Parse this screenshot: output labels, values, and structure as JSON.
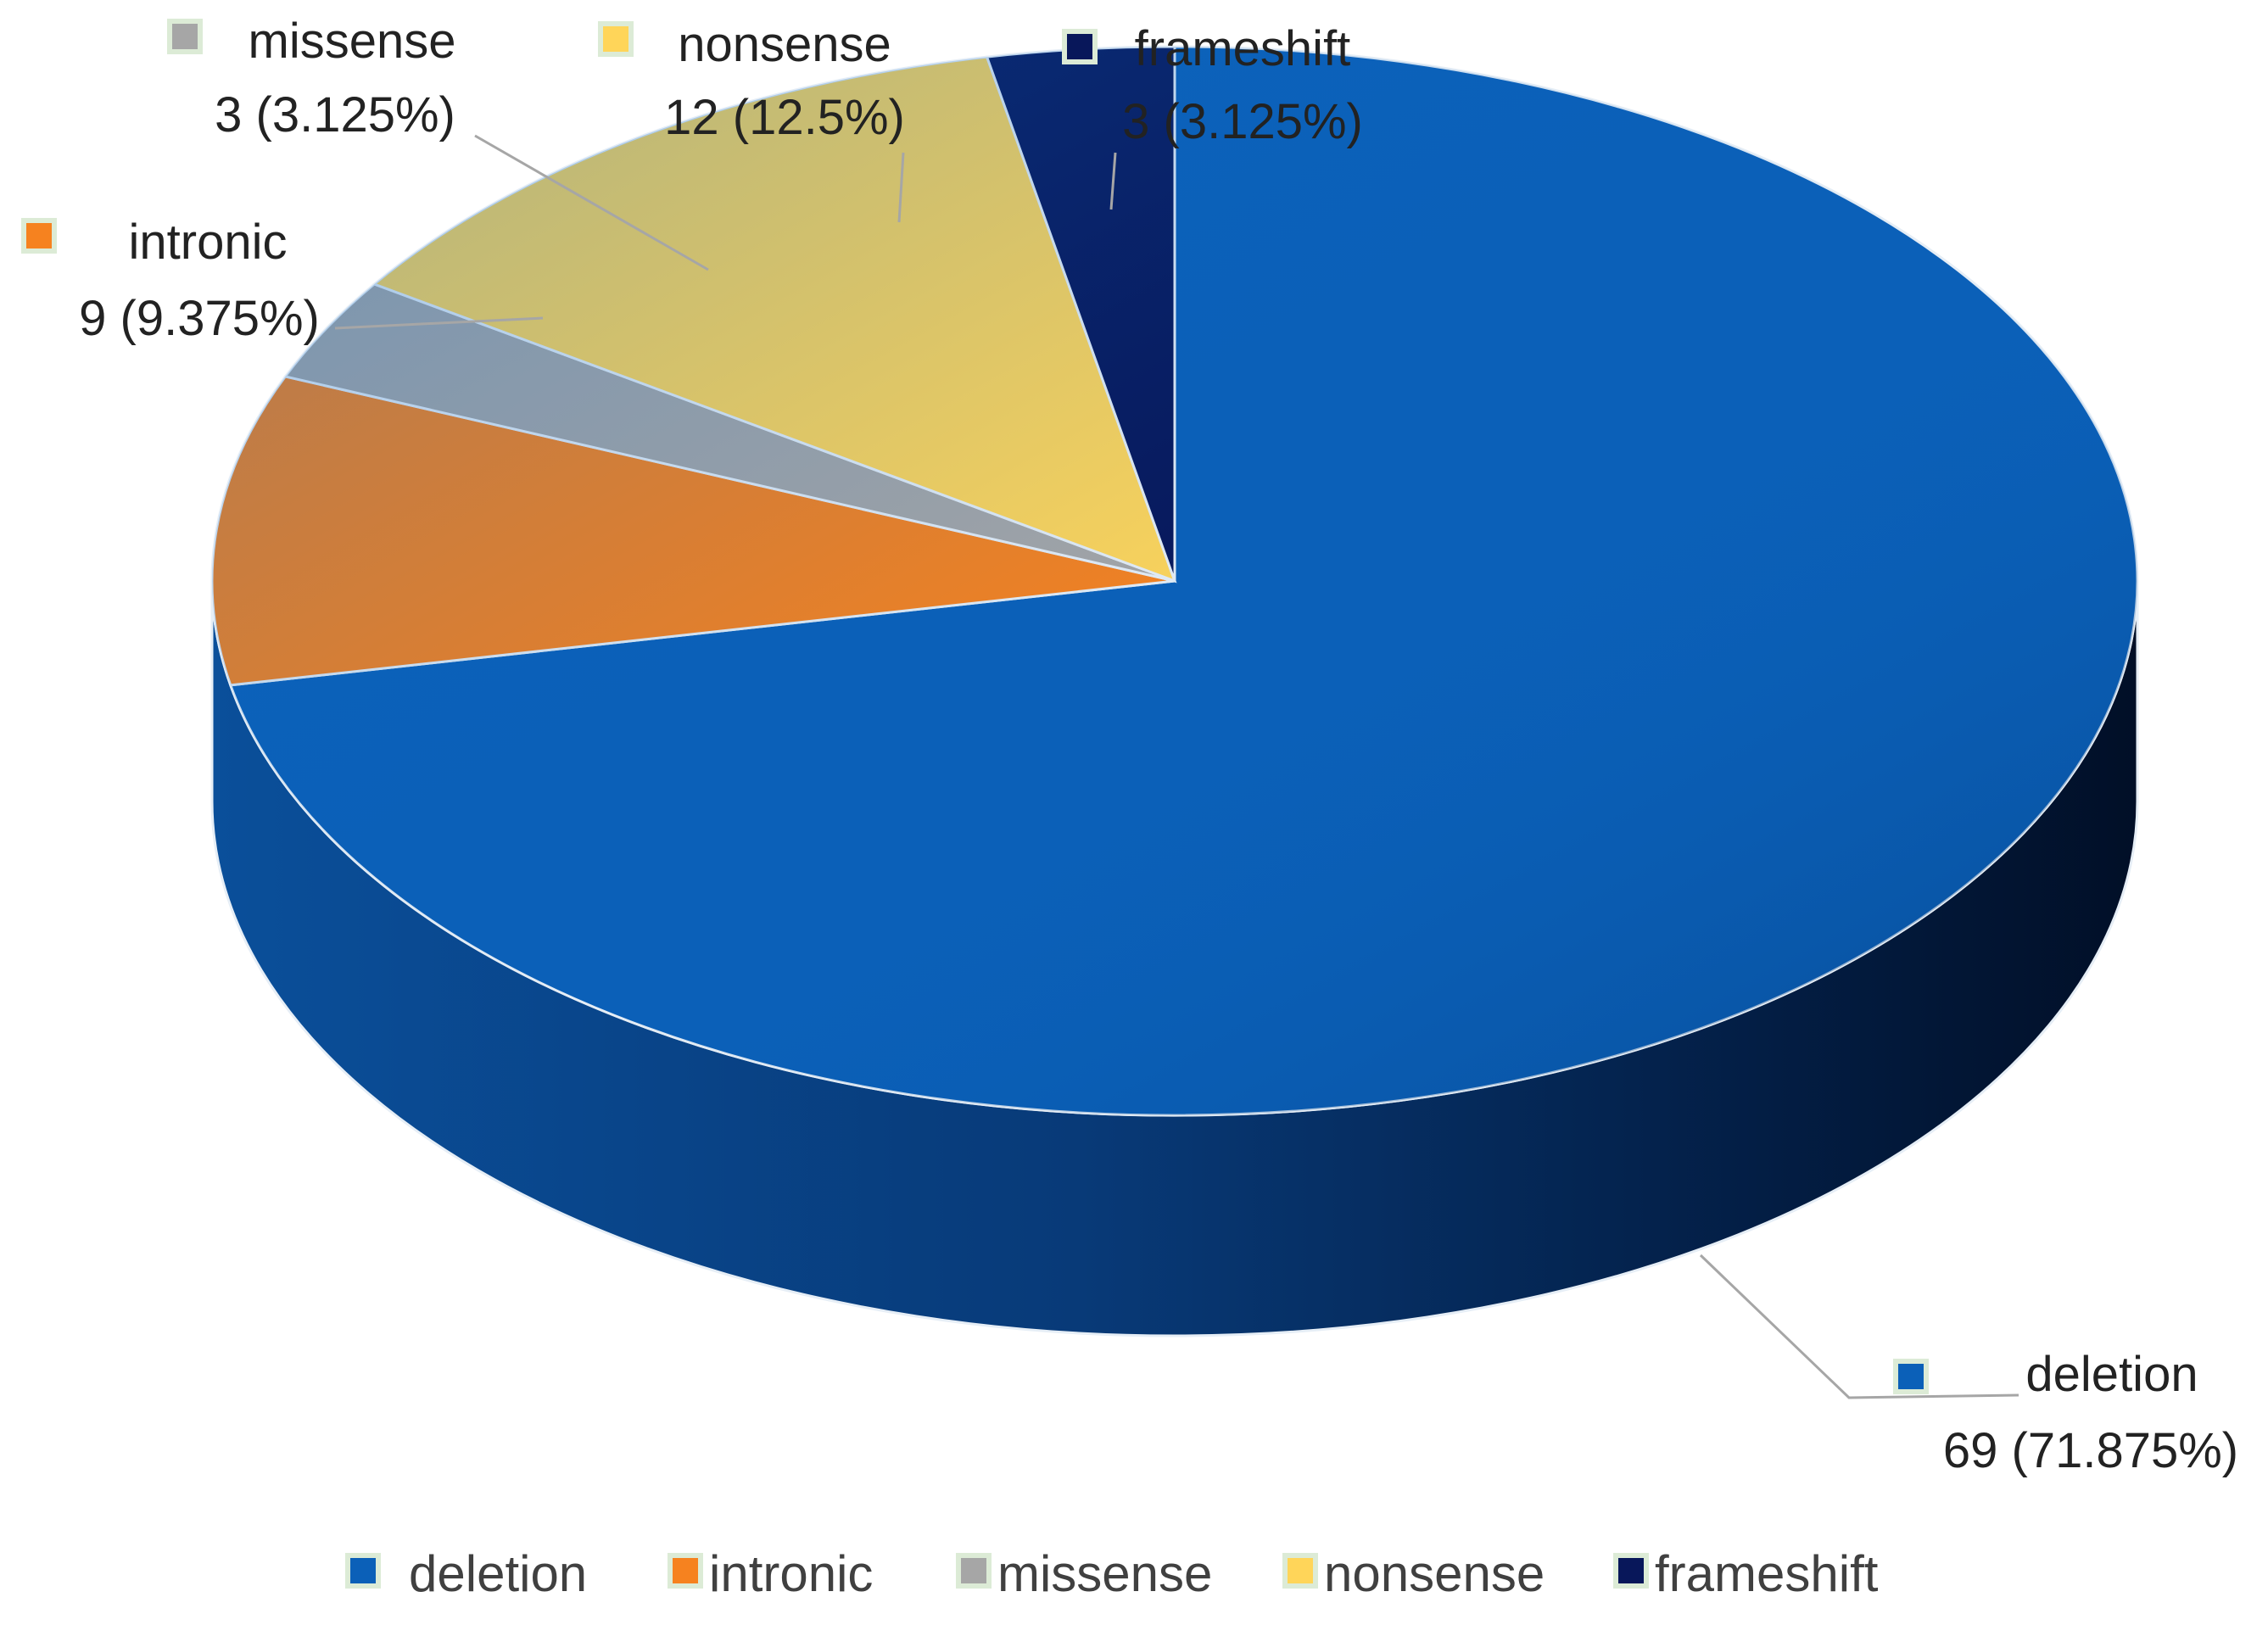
{
  "chart_data": {
    "type": "pie",
    "title": "",
    "series": [
      {
        "slices": [
          {
            "label": "deletion",
            "count": 69,
            "percent_label": "69 (71.875%)",
            "value": 69,
            "color": "#0B60B8"
          },
          {
            "label": "intronic",
            "count": 9,
            "percent_label": "9 (9.375%)",
            "value": 9,
            "color": "#F6821F"
          },
          {
            "label": "missense",
            "count": 3,
            "percent_label": "3 (3.125%)",
            "value": 3,
            "color": "#A6A6A6"
          },
          {
            "label": "nonsense",
            "count": 12,
            "percent_label": "12 (12.5%)",
            "value": 12,
            "color": "#FFD559"
          },
          {
            "label": "frameshift",
            "count": 3,
            "percent_label": "3 (3.125%)",
            "value": 3,
            "color": "#08175A"
          }
        ]
      }
    ],
    "legend": {
      "placement": "bottom",
      "entries": [
        "deletion",
        "intronic",
        "missense",
        "nonsense",
        "frameshift"
      ]
    },
    "style": "3d-pie"
  }
}
